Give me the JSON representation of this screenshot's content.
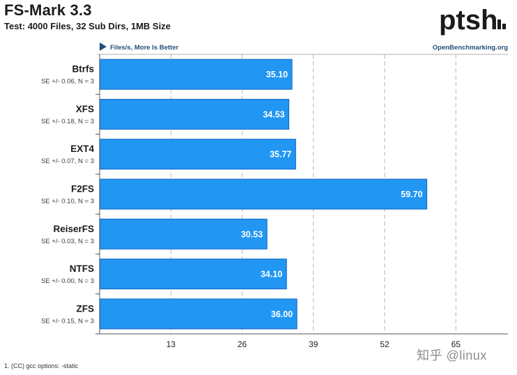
{
  "header": {
    "title": "FS-Mark 3.3",
    "subtitle": "Test: 4000 Files, 32 Sub Dirs, 1MB Size",
    "logo_text": "ptsh"
  },
  "chart_data": {
    "type": "bar",
    "orientation": "horizontal",
    "metric_label": "Files/s, More Is Better",
    "source_label": "OpenBenchmarking.org",
    "categories": [
      "Btrfs",
      "XFS",
      "EXT4",
      "F2FS",
      "ReiserFS",
      "NTFS",
      "ZFS"
    ],
    "values": [
      35.1,
      34.53,
      35.77,
      59.7,
      30.53,
      34.1,
      36.0
    ],
    "value_labels": [
      "35.10",
      "34.53",
      "35.77",
      "59.70",
      "30.53",
      "34.10",
      "36.00"
    ],
    "errors": [
      "SE +/- 0.06, N = 3",
      "SE +/- 0.18, N = 3",
      "SE +/- 0.07, N = 3",
      "SE +/- 0.10, N = 3",
      "SE +/- 0.03, N = 3",
      "SE +/- 0.00, N = 3",
      "SE +/- 0.15, N = 3"
    ],
    "xticks": [
      13,
      26,
      39,
      52,
      65
    ],
    "xlim": [
      0,
      74.5
    ],
    "grid": true,
    "bar_color": "#2196f3",
    "bar_border": "#1565c0",
    "accent_color": "#1f4e79"
  },
  "footer": {
    "note": "1. (CC) gcc options: -static",
    "watermark": "知乎 @linux"
  }
}
